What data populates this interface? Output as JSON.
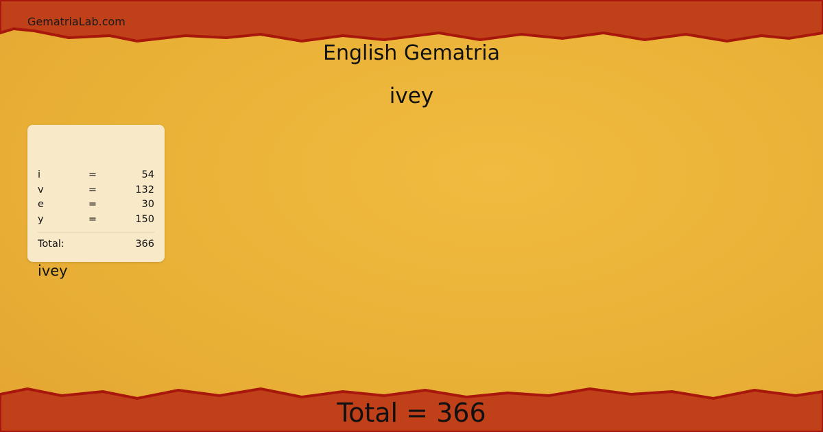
{
  "site": "GematriaLab.com",
  "title": "English Gematria",
  "word": "ivey",
  "card": {
    "word": "ivey",
    "rows": [
      {
        "letter": "i",
        "eq": "=",
        "value": "54"
      },
      {
        "letter": "v",
        "eq": "=",
        "value": "132"
      },
      {
        "letter": "e",
        "eq": "=",
        "value": "30"
      },
      {
        "letter": "y",
        "eq": "=",
        "value": "150"
      }
    ],
    "total_label": "Total:",
    "total_value": "366"
  },
  "footer_total": "Total = 366",
  "colors": {
    "background": "#ecb43a",
    "border": "#c0401a",
    "border_edge": "#a8170c",
    "card": "#f8e9c8"
  }
}
